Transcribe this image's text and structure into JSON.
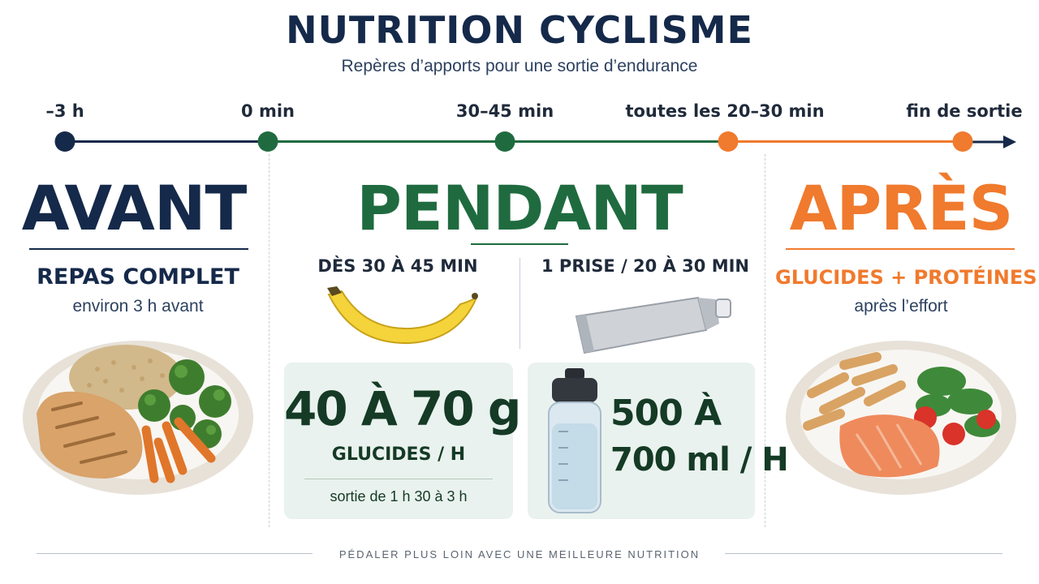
{
  "header": {
    "title": "NUTRITION CYCLISME",
    "subtitle": "Repères d’apports pour une sortie d’endurance"
  },
  "timeline": {
    "markers": [
      {
        "label": "–3 h",
        "color": "#15294a"
      },
      {
        "label": "0 min",
        "color": "#1f6b3f"
      },
      {
        "label": "30–45 min",
        "color": "#1f6b3f"
      },
      {
        "label": "toutes les 20–30 min",
        "color": "#f07a2d"
      },
      {
        "label": "fin de sortie",
        "color": "#f07a2d"
      }
    ],
    "segment_colors": [
      "#15294a",
      "#1f6b3f",
      "#1f6b3f",
      "#f07a2d"
    ],
    "arrow_color": "#15294a"
  },
  "avant": {
    "heading": "AVANT",
    "color": "#15294a",
    "meal_title": "REPAS COMPLET",
    "meal_note": "environ 3 h avant",
    "plate_icon": "chicken-quinoa-vegetables-plate-icon"
  },
  "pendant": {
    "heading": "PENDANT",
    "color": "#1f6b3f",
    "left_title": "DÈS 30 À 45 MIN",
    "right_title": "1 PRISE / 20 À 30 MIN",
    "banana_icon": "banana-icon",
    "gel_icon": "energy-gel-pouch-icon",
    "bottle_icon": "water-bottle-icon",
    "carbs_value": "40 À 70 g",
    "carbs_unit": "GLUCIDES / H",
    "carbs_note": "sortie de 1 h 30 à 3 h",
    "water_line1": "500 À",
    "water_line2": "700 ml / H"
  },
  "apres": {
    "heading": "APRÈS",
    "color": "#f07a2d",
    "meal_title": "GLUCIDES + PROTÉINES",
    "meal_note": "après l’effort",
    "plate_icon": "pasta-salmon-salad-plate-icon"
  },
  "footer": {
    "text": "PÉDALER PLUS LOIN AVEC UNE MEILLEURE NUTRITION"
  }
}
